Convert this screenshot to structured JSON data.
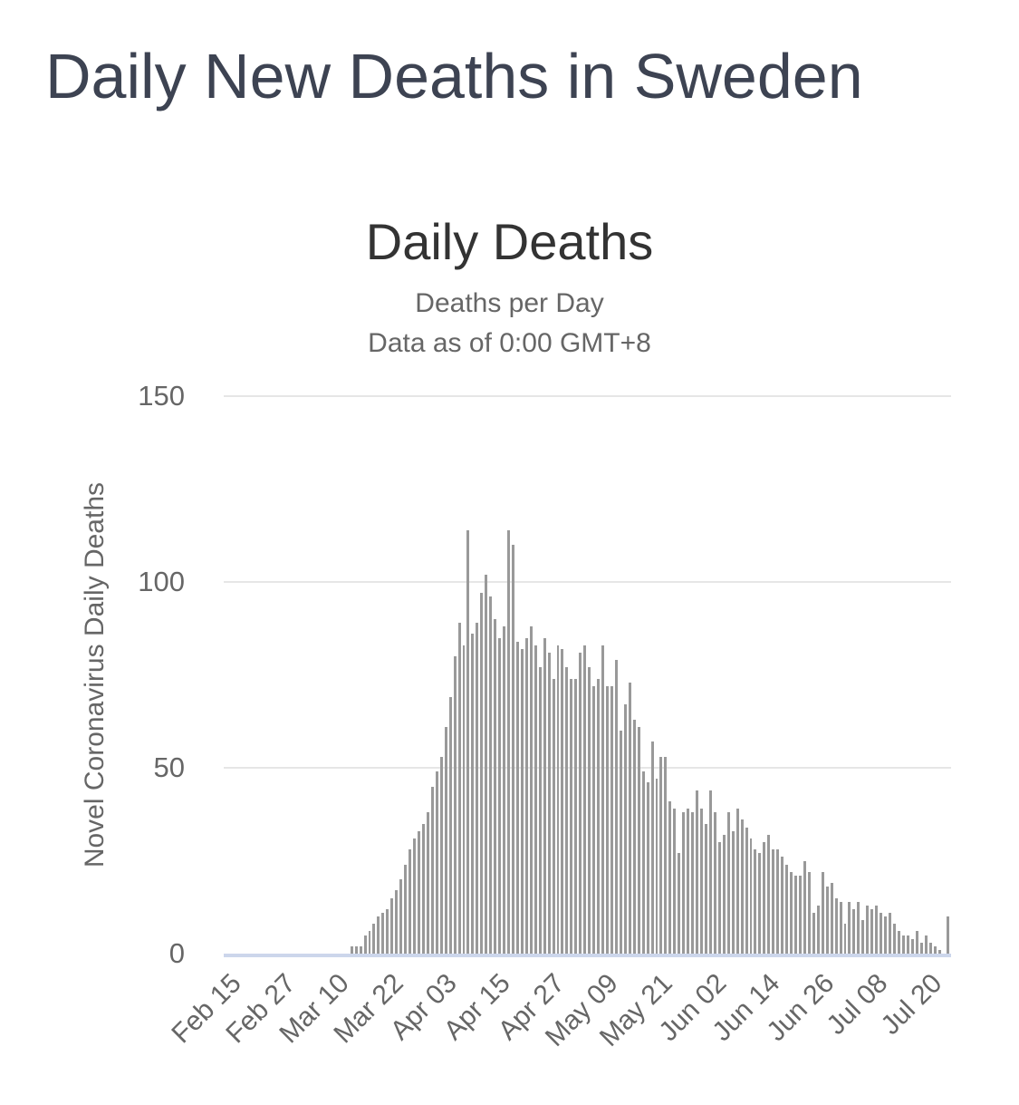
{
  "page": {
    "heading": "Daily New Deaths in Sweden"
  },
  "chart": {
    "title": "Daily Deaths",
    "subtitle_lines": [
      "Deaths per Day",
      "Data as of 0:00 GMT+8"
    ],
    "y_axis": {
      "title": "Novel Coronavirus Daily Deaths",
      "max": 150,
      "tick_values": [
        150,
        100,
        50,
        0
      ],
      "tick_labels": [
        "150",
        "100",
        "50",
        "0"
      ]
    },
    "x_axis": {
      "tick_interval_days": 12,
      "tick_labels": [
        "Feb 15",
        "Feb 27",
        "Mar 10",
        "Mar 22",
        "Apr 03",
        "Apr 15",
        "Apr 27",
        "May 09",
        "May 21",
        "Jun 02",
        "Jun 14",
        "Jun 26",
        "Jul 08",
        "Jul 20"
      ]
    },
    "colors": {
      "heading": "#3d4352",
      "title": "#333333",
      "subtitle": "#666666",
      "axis_label": "#666666",
      "bar": "#999999",
      "gridline": "#e6e6e6",
      "axis_line": "#ccd6eb",
      "background": "#ffffff"
    }
  },
  "chart_data": {
    "type": "bar",
    "title": "Daily Deaths",
    "subtitle": "Deaths per Day",
    "note": "Data as of 0:00 GMT+8",
    "series_name": "Daily Deaths",
    "xlabel": "",
    "ylabel": "Novel Coronavirus Daily Deaths",
    "ylim": [
      0,
      150
    ],
    "yticks": [
      0,
      50,
      100,
      150
    ],
    "xtick_labels": [
      "Feb 15",
      "Feb 27",
      "Mar 10",
      "Mar 22",
      "Apr 03",
      "Apr 15",
      "Apr 27",
      "May 09",
      "May 21",
      "Jun 02",
      "Jun 14",
      "Jun 26",
      "Jul 08",
      "Jul 20"
    ],
    "legend": "none",
    "grid": "horizontal",
    "x": [
      "Feb 15",
      "Feb 16",
      "Feb 17",
      "Feb 18",
      "Feb 19",
      "Feb 20",
      "Feb 21",
      "Feb 22",
      "Feb 23",
      "Feb 24",
      "Feb 25",
      "Feb 26",
      "Feb 27",
      "Feb 28",
      "Feb 29",
      "Mar 01",
      "Mar 02",
      "Mar 03",
      "Mar 04",
      "Mar 05",
      "Mar 06",
      "Mar 07",
      "Mar 08",
      "Mar 09",
      "Mar 10",
      "Mar 11",
      "Mar 12",
      "Mar 13",
      "Mar 14",
      "Mar 15",
      "Mar 16",
      "Mar 17",
      "Mar 18",
      "Mar 19",
      "Mar 20",
      "Mar 21",
      "Mar 22",
      "Mar 23",
      "Mar 24",
      "Mar 25",
      "Mar 26",
      "Mar 27",
      "Mar 28",
      "Mar 29",
      "Mar 30",
      "Mar 31",
      "Apr 01",
      "Apr 02",
      "Apr 03",
      "Apr 04",
      "Apr 05",
      "Apr 06",
      "Apr 07",
      "Apr 08",
      "Apr 09",
      "Apr 10",
      "Apr 11",
      "Apr 12",
      "Apr 13",
      "Apr 14",
      "Apr 15",
      "Apr 16",
      "Apr 17",
      "Apr 18",
      "Apr 19",
      "Apr 20",
      "Apr 21",
      "Apr 22",
      "Apr 23",
      "Apr 24",
      "Apr 25",
      "Apr 26",
      "Apr 27",
      "Apr 28",
      "Apr 29",
      "Apr 30",
      "May 01",
      "May 02",
      "May 03",
      "May 04",
      "May 05",
      "May 06",
      "May 07",
      "May 08",
      "May 09",
      "May 10",
      "May 11",
      "May 12",
      "May 13",
      "May 14",
      "May 15",
      "May 16",
      "May 17",
      "May 18",
      "May 19",
      "May 20",
      "May 21",
      "May 22",
      "May 23",
      "May 24",
      "May 25",
      "May 26",
      "May 27",
      "May 28",
      "May 29",
      "May 30",
      "May 31",
      "Jun 01",
      "Jun 02",
      "Jun 03",
      "Jun 04",
      "Jun 05",
      "Jun 06",
      "Jun 07",
      "Jun 08",
      "Jun 09",
      "Jun 10",
      "Jun 11",
      "Jun 12",
      "Jun 13",
      "Jun 14",
      "Jun 15",
      "Jun 16",
      "Jun 17",
      "Jun 18",
      "Jun 19",
      "Jun 20",
      "Jun 21",
      "Jun 22",
      "Jun 23",
      "Jun 24",
      "Jun 25",
      "Jun 26",
      "Jun 27",
      "Jun 28",
      "Jun 29",
      "Jun 30",
      "Jul 01",
      "Jul 02",
      "Jul 03",
      "Jul 04",
      "Jul 05",
      "Jul 06",
      "Jul 07",
      "Jul 08",
      "Jul 09",
      "Jul 10",
      "Jul 11",
      "Jul 12",
      "Jul 13",
      "Jul 14",
      "Jul 15",
      "Jul 16",
      "Jul 17",
      "Jul 18",
      "Jul 19",
      "Jul 20",
      "Jul 21",
      "Jul 22",
      "Jul 23",
      "Jul 24",
      "Jul 25"
    ],
    "values": [
      0,
      0,
      0,
      0,
      0,
      0,
      0,
      0,
      0,
      0,
      0,
      0,
      0,
      0,
      0,
      0,
      0,
      0,
      0,
      0,
      0,
      0,
      0,
      0,
      0,
      0,
      0,
      0,
      2,
      2,
      2,
      5,
      6,
      8,
      10,
      11,
      12,
      15,
      17,
      20,
      24,
      28,
      31,
      33,
      35,
      38,
      45,
      49,
      53,
      61,
      69,
      80,
      89,
      83,
      114,
      86,
      89,
      97,
      102,
      96,
      90,
      85,
      88,
      114,
      110,
      84,
      82,
      85,
      88,
      83,
      77,
      85,
      81,
      74,
      83,
      82,
      77,
      74,
      74,
      81,
      83,
      77,
      72,
      74,
      83,
      72,
      72,
      79,
      60,
      67,
      73,
      63,
      61,
      49,
      46,
      57,
      47,
      53,
      53,
      41,
      39,
      27,
      38,
      39,
      38,
      44,
      39,
      35,
      44,
      38,
      30,
      32,
      38,
      33,
      39,
      36,
      34,
      31,
      28,
      27,
      30,
      32,
      28,
      28,
      26,
      24,
      22,
      21,
      21,
      25,
      22,
      11,
      13,
      22,
      18,
      19,
      15,
      14,
      8,
      14,
      12,
      14,
      9,
      13,
      12,
      13,
      11,
      10,
      11,
      8,
      6,
      5,
      5,
      4,
      6,
      3,
      5,
      3,
      2,
      1,
      0,
      10
    ]
  }
}
